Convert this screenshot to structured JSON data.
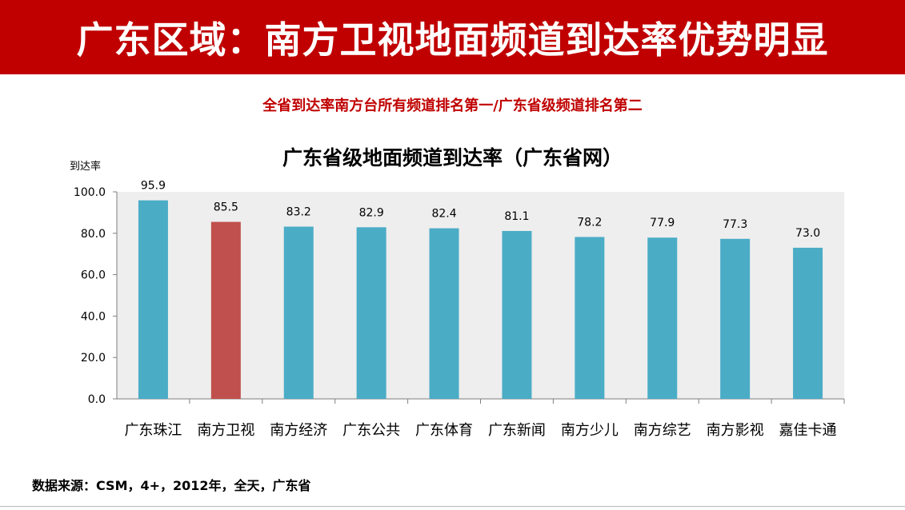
{
  "banner": {
    "title": "广东区域：南方卫视地面频道到达率优势明显"
  },
  "subtitle": "全省到达率南方台所有频道排名第一/广东省级频道排名第二",
  "source": "数据来源：CSM，4+，2012年，全天，广东省",
  "colors": {
    "banner": "#c00000",
    "bar": "#4bacc6",
    "highlight_bar": "#c0504d",
    "plot_bg": "#eeeeee"
  },
  "chart_data": {
    "type": "bar",
    "title": "广东省级地面频道到达率（广东省网）",
    "ylabel": "到达率",
    "xlabel": "",
    "categories": [
      "广东珠江",
      "南方卫视",
      "南方经济",
      "广东公共",
      "广东体育",
      "广东新闻",
      "南方少儿",
      "南方综艺",
      "南方影视",
      "嘉佳卡通"
    ],
    "values": [
      95.9,
      85.5,
      83.2,
      82.9,
      82.4,
      81.1,
      78.2,
      77.9,
      77.3,
      73.0
    ],
    "data_labels": [
      "95.9",
      "85.5",
      "83.2",
      "82.9",
      "82.4",
      "81.1",
      "78.2",
      "77.9",
      "77.3",
      "73.0"
    ],
    "ylim": [
      0,
      100
    ],
    "yticks": [
      "0.0",
      "20.0",
      "40.0",
      "60.0",
      "80.0",
      "100.0"
    ],
    "highlight_index": 1,
    "grid": false
  }
}
